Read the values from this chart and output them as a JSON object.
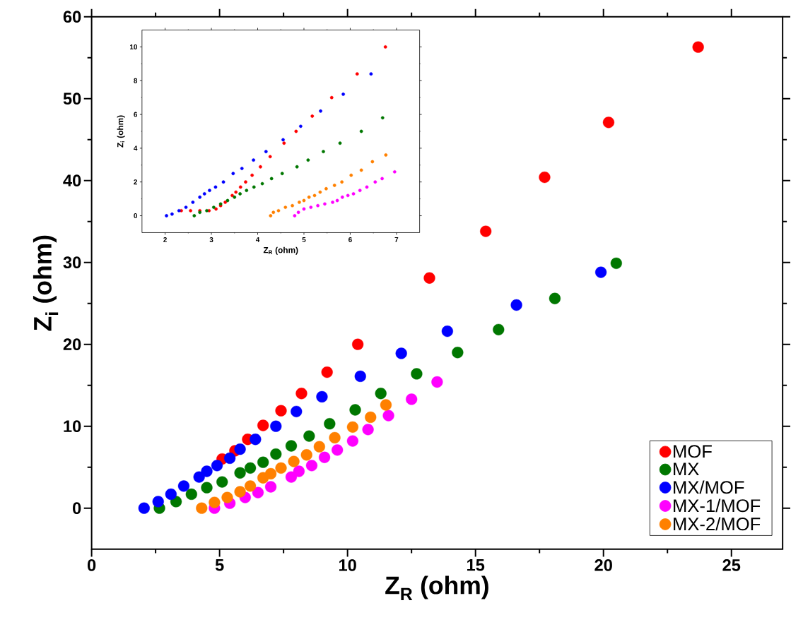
{
  "chart_data": [
    {
      "type": "scatter",
      "xlabel": "Z$_{R}$ (ohm)",
      "ylabel": "Z$_{i}$ (ohm)",
      "xlim": [
        0,
        27
      ],
      "ylim": [
        -5,
        60
      ],
      "xticks": [
        0,
        5,
        10,
        15,
        20,
        25
      ],
      "yticks": [
        0,
        10,
        20,
        30,
        40,
        50,
        60
      ],
      "legend": "bottom right",
      "marker": "circle",
      "series": [
        {
          "name": "MOF",
          "color": "#ff0000",
          "x": [
            5.1,
            5.6,
            6.1,
            6.7,
            7.4,
            8.2,
            9.2,
            10.4,
            13.2,
            15.4,
            17.7,
            20.2,
            23.7
          ],
          "values": [
            6.0,
            7.0,
            8.4,
            10.1,
            11.9,
            14.0,
            16.6,
            20.0,
            28.1,
            33.8,
            40.4,
            47.1,
            56.3
          ]
        },
        {
          "name": "MX",
          "color": "#007700",
          "x": [
            2.65,
            3.3,
            3.9,
            4.5,
            5.1,
            5.8,
            6.2,
            6.7,
            7.2,
            7.8,
            8.5,
            9.3,
            10.3,
            11.3,
            12.7,
            14.3,
            15.9,
            18.1,
            20.5
          ],
          "values": [
            0.0,
            0.8,
            1.7,
            2.5,
            3.2,
            4.3,
            4.9,
            5.6,
            6.6,
            7.6,
            8.8,
            10.3,
            12.0,
            14.0,
            16.4,
            19.0,
            21.8,
            25.6,
            29.9
          ]
        },
        {
          "name": "MX/MOF",
          "color": "#0000ff",
          "x": [
            2.05,
            2.6,
            3.1,
            3.6,
            4.2,
            4.5,
            4.9,
            5.4,
            5.8,
            6.4,
            7.2,
            8.0,
            9.0,
            10.5,
            12.1,
            13.9,
            16.6,
            19.9
          ],
          "values": [
            0.0,
            0.8,
            1.7,
            2.7,
            3.8,
            4.5,
            5.2,
            6.1,
            7.2,
            8.4,
            10.0,
            11.8,
            13.6,
            16.1,
            18.9,
            21.6,
            24.8,
            28.8
          ]
        },
        {
          "name": "MX-1/MOF",
          "color": "#ff00ff",
          "x": [
            4.8,
            5.4,
            6.0,
            6.5,
            7.0,
            7.8,
            8.1,
            8.6,
            9.1,
            9.6,
            10.2,
            10.8,
            11.6,
            12.5,
            13.5
          ],
          "values": [
            0.0,
            0.6,
            1.3,
            1.9,
            2.6,
            3.8,
            4.5,
            5.2,
            6.2,
            7.1,
            8.2,
            9.6,
            11.3,
            13.3,
            15.4
          ]
        },
        {
          "name": "MX-2/MOF",
          "color": "#ff8000",
          "x": [
            4.3,
            4.8,
            5.3,
            5.8,
            6.2,
            6.7,
            7.0,
            7.4,
            7.9,
            8.4,
            8.9,
            9.5,
            10.2,
            10.9,
            11.5
          ],
          "values": [
            0.0,
            0.7,
            1.3,
            2.0,
            2.7,
            3.7,
            4.2,
            4.9,
            5.7,
            6.5,
            7.5,
            8.6,
            9.9,
            11.1,
            12.6
          ]
        }
      ]
    },
    {
      "type": "scatter",
      "xlabel": "Z$_{R}$ (ohm)",
      "ylabel": "Z$_{i}$ (ohm)",
      "xlim": [
        1.5,
        7.5
      ],
      "ylim": [
        -1,
        11
      ],
      "xticks": [
        2,
        3,
        4,
        5,
        6,
        7
      ],
      "yticks": [
        0,
        2,
        4,
        6,
        8,
        10
      ],
      "marker": "circle",
      "series": [
        {
          "color": "#ff0000",
          "x": [
            2.35,
            2.55,
            2.75,
            2.95,
            3.1,
            3.2,
            3.3,
            3.45,
            3.53,
            3.63,
            3.74,
            3.88,
            4.06,
            4.27,
            4.57,
            4.83,
            5.18,
            5.6,
            6.15,
            6.76
          ],
          "values": [
            0.3,
            0.3,
            0.3,
            0.3,
            0.4,
            0.6,
            0.8,
            1.2,
            1.4,
            1.7,
            2.0,
            2.4,
            2.9,
            3.5,
            4.3,
            5.0,
            5.9,
            7.0,
            8.4,
            10.0
          ]
        },
        {
          "color": "#007700",
          "x": [
            2.63,
            2.75,
            2.9,
            3.05,
            3.2,
            3.35,
            3.5,
            3.62,
            3.76,
            3.92,
            4.1,
            4.3,
            4.53,
            4.85,
            5.09,
            5.42,
            5.78,
            6.24,
            6.7
          ],
          "values": [
            0.0,
            0.2,
            0.3,
            0.5,
            0.7,
            0.9,
            1.1,
            1.3,
            1.5,
            1.7,
            1.9,
            2.2,
            2.5,
            2.9,
            3.3,
            3.8,
            4.3,
            5.0,
            5.8
          ]
        },
        {
          "color": "#0000ff",
          "x": [
            2.03,
            2.15,
            2.3,
            2.45,
            2.6,
            2.75,
            2.85,
            2.96,
            3.09,
            3.26,
            3.47,
            3.66,
            3.91,
            4.18,
            4.55,
            4.93,
            5.36,
            5.85,
            6.45
          ],
          "values": [
            0.0,
            0.1,
            0.3,
            0.5,
            0.8,
            1.1,
            1.3,
            1.5,
            1.7,
            2.0,
            2.5,
            2.8,
            3.3,
            3.8,
            4.5,
            5.3,
            6.2,
            7.2,
            8.4
          ]
        },
        {
          "color": "#ff00ff",
          "x": [
            4.8,
            4.88,
            5.0,
            5.15,
            5.3,
            5.45,
            5.62,
            5.72,
            5.83,
            5.95,
            6.07,
            6.21,
            6.36,
            6.54,
            6.69,
            6.96
          ],
          "values": [
            0.0,
            0.2,
            0.4,
            0.5,
            0.6,
            0.7,
            0.8,
            0.9,
            1.1,
            1.2,
            1.3,
            1.5,
            1.7,
            2.0,
            2.2,
            2.6
          ]
        },
        {
          "color": "#ff8000",
          "x": [
            4.28,
            4.34,
            4.45,
            4.6,
            4.75,
            4.9,
            5.0,
            5.11,
            5.23,
            5.35,
            5.48,
            5.66,
            5.82,
            6.02,
            6.24,
            6.48,
            6.77
          ],
          "values": [
            0.0,
            0.2,
            0.3,
            0.5,
            0.6,
            0.8,
            0.9,
            1.1,
            1.2,
            1.4,
            1.6,
            1.8,
            2.0,
            2.4,
            2.7,
            3.2,
            3.6
          ]
        }
      ]
    }
  ]
}
